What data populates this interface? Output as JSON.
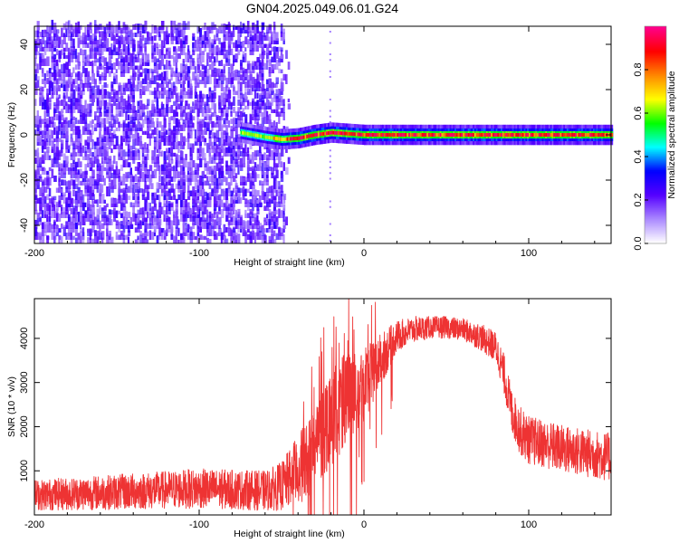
{
  "title": "GN04.2025.049.06.01.G24",
  "chart_data": [
    {
      "type": "heatmap",
      "xlabel": "Height of straight line (km)",
      "ylabel": "Frequency (Hz)",
      "xlim": [
        -200,
        150
      ],
      "ylim": [
        -48,
        48
      ],
      "xticks": [
        -200,
        -100,
        0,
        100
      ],
      "xtick_labels": [
        "-200",
        "-100",
        "0",
        "100"
      ],
      "yticks": [
        -40,
        -20,
        0,
        20,
        40
      ],
      "ytick_labels": [
        "-40",
        "-20",
        "0",
        "20",
        "40"
      ],
      "colorbar": {
        "label": "Normalized spectral amplitude",
        "range": [
          0,
          1
        ],
        "ticks": [
          0,
          0.2,
          0.4,
          0.6,
          0.8
        ],
        "tick_labels": [
          "0.0",
          "0.2",
          "0.4",
          "0.6",
          "0.8"
        ],
        "colors": [
          "#ffffff",
          "#aa88ff",
          "#5500ff",
          "#0000ff",
          "#00ffff",
          "#00ff00",
          "#ffff00",
          "#ff8800",
          "#ff0000",
          "#ff0088"
        ]
      },
      "noise_region_x": [
        -200,
        -50
      ],
      "signal_line": {
        "x": [
          -75,
          -60,
          -50,
          -40,
          -30,
          -20,
          -10,
          0,
          20,
          50,
          80,
          100,
          150
        ],
        "frequency": [
          1,
          -1,
          -2,
          -1.5,
          0,
          1,
          0.5,
          0,
          0,
          0,
          0,
          0,
          0
        ]
      }
    },
    {
      "type": "line",
      "xlabel": "Height of straight line (km)",
      "ylabel": "SNR (10 * v/v)",
      "xlim": [
        -200,
        150
      ],
      "ylim": [
        0,
        4900
      ],
      "xticks": [
        -200,
        -100,
        0,
        100
      ],
      "xtick_labels": [
        "-200",
        "-100",
        "0",
        "100"
      ],
      "yticks": [
        1000,
        2000,
        3000,
        4000
      ],
      "ytick_labels": [
        "1000",
        "2000",
        "3000",
        "4000"
      ],
      "color": "#ee3333",
      "envelope": {
        "x": [
          -200,
          -150,
          -100,
          -60,
          -50,
          -40,
          -30,
          -25,
          -20,
          -10,
          0,
          10,
          20,
          30,
          40,
          50,
          60,
          70,
          80,
          85,
          90,
          95,
          100,
          120,
          150
        ],
        "mean": [
          450,
          520,
          600,
          550,
          650,
          1000,
          1500,
          1900,
          2300,
          2600,
          3000,
          3500,
          4050,
          4200,
          4250,
          4250,
          4200,
          4050,
          3800,
          3200,
          2300,
          1900,
          1700,
          1500,
          1300
        ],
        "spread": [
          350,
          400,
          450,
          450,
          550,
          800,
          1000,
          1100,
          1200,
          1100,
          900,
          600,
          350,
          300,
          250,
          250,
          250,
          300,
          350,
          450,
          500,
          550,
          550,
          550,
          550
        ]
      }
    }
  ]
}
